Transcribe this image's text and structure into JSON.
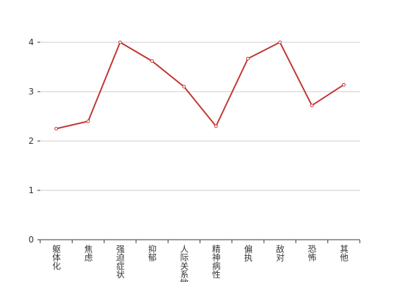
{
  "chart_data": {
    "type": "line",
    "categories": [
      "躯体化",
      "焦虑",
      "强迫症状",
      "抑郁",
      "人际关系敏感",
      "精神病性",
      "偏执",
      "敌对",
      "恐怖",
      "其他"
    ],
    "series": [
      {
        "color": "#c23531",
        "values": [
          2.25,
          2.4,
          4.0,
          3.62,
          3.1,
          2.3,
          3.67,
          4.0,
          2.72,
          3.14
        ]
      }
    ],
    "ylim": [
      0,
      4
    ],
    "yticks": [
      0,
      1,
      2,
      3,
      4
    ],
    "grid": true
  }
}
